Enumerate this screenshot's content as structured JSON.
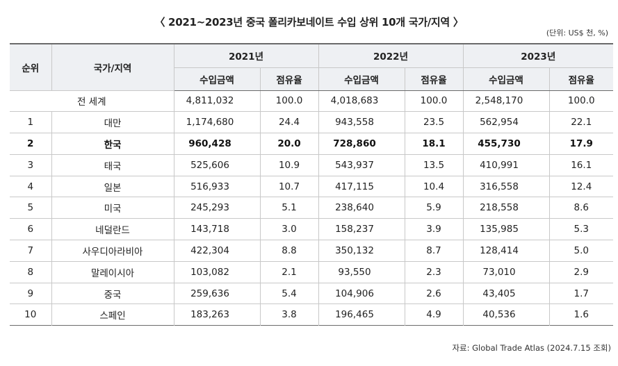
{
  "title": "〈 2021~2023년 중국 폴리카보네이트 수입 상위 10개 국가/지역 〉",
  "unit": "(단위: US$ 천, %)",
  "headers": {
    "rank": "순위",
    "country": "국가/지역",
    "years": [
      "2021년",
      "2022년",
      "2023년"
    ],
    "amount": "수입금액",
    "share": "점유율"
  },
  "world_row": {
    "label": "전 세계",
    "values": [
      "4,811,032",
      "100.0",
      "4,018,683",
      "100.0",
      "2,548,170",
      "100.0"
    ]
  },
  "rows": [
    {
      "rank": "1",
      "country": "대만",
      "values": [
        "1,174,680",
        "24.4",
        "943,558",
        "23.5",
        "562,954",
        "22.1"
      ]
    },
    {
      "rank": "2",
      "country": "한국",
      "values": [
        "960,428",
        "20.0",
        "728,860",
        "18.1",
        "455,730",
        "17.9"
      ],
      "highlight": true
    },
    {
      "rank": "3",
      "country": "태국",
      "values": [
        "525,606",
        "10.9",
        "543,937",
        "13.5",
        "410,991",
        "16.1"
      ]
    },
    {
      "rank": "4",
      "country": "일본",
      "values": [
        "516,933",
        "10.7",
        "417,115",
        "10.4",
        "316,558",
        "12.4"
      ]
    },
    {
      "rank": "5",
      "country": "미국",
      "values": [
        "245,293",
        "5.1",
        "238,640",
        "5.9",
        "218,558",
        "8.6"
      ]
    },
    {
      "rank": "6",
      "country": "네덜란드",
      "values": [
        "143,718",
        "3.0",
        "158,237",
        "3.9",
        "135,985",
        "5.3"
      ]
    },
    {
      "rank": "7",
      "country": "사우디아라비아",
      "values": [
        "422,304",
        "8.8",
        "350,132",
        "8.7",
        "128,414",
        "5.0"
      ]
    },
    {
      "rank": "8",
      "country": "말레이시아",
      "values": [
        "103,082",
        "2.1",
        "93,550",
        "2.3",
        "73,010",
        "2.9"
      ]
    },
    {
      "rank": "9",
      "country": "중국",
      "values": [
        "259,636",
        "5.4",
        "104,906",
        "2.6",
        "43,405",
        "1.7"
      ]
    },
    {
      "rank": "10",
      "country": "스페인",
      "values": [
        "183,263",
        "3.8",
        "196,465",
        "4.9",
        "40,536",
        "1.6"
      ]
    }
  ],
  "source": "자료: Global Trade Atlas (2024.7.15 조회)"
}
